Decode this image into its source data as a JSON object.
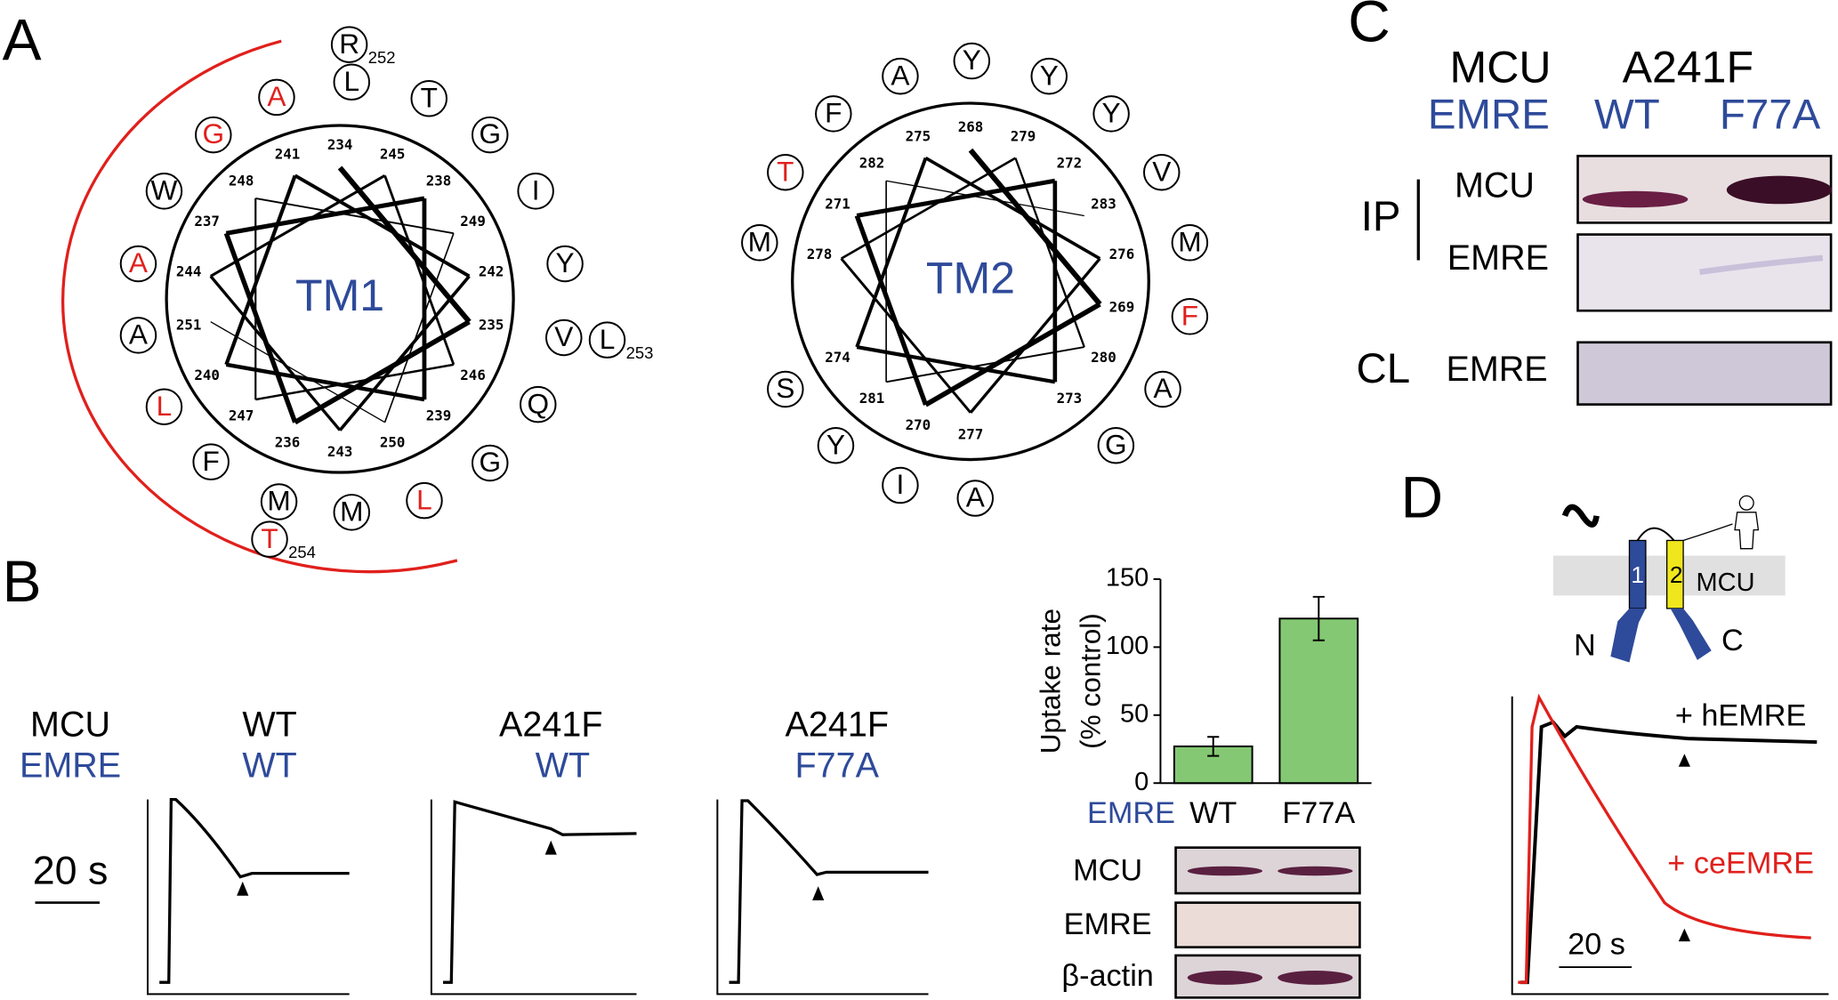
{
  "figure": {
    "panel_labels": [
      "A",
      "B",
      "C",
      "D"
    ],
    "panel_a": {
      "wheels": [
        {
          "name": "TM1",
          "residues": [
            {
              "letter": "R",
              "color": "#000000",
              "number": 252
            },
            {
              "letter": "L",
              "color": "#000000"
            },
            {
              "letter": "T",
              "color": "#000000"
            },
            {
              "letter": "G",
              "color": "#000000"
            },
            {
              "letter": "I",
              "color": "#000000"
            },
            {
              "letter": "Y",
              "color": "#000000"
            },
            {
              "letter": "V",
              "color": "#000000"
            },
            {
              "letter": "L",
              "color": "#000000",
              "number": 253
            },
            {
              "letter": "Q",
              "color": "#000000"
            },
            {
              "letter": "G",
              "color": "#000000"
            },
            {
              "letter": "L",
              "color": "#e0201c"
            },
            {
              "letter": "M",
              "color": "#000000"
            },
            {
              "letter": "M",
              "color": "#000000"
            },
            {
              "letter": "T",
              "color": "#e0201c",
              "number": 254
            },
            {
              "letter": "F",
              "color": "#000000"
            },
            {
              "letter": "L",
              "color": "#e0201c"
            },
            {
              "letter": "A",
              "color": "#000000"
            },
            {
              "letter": "A",
              "color": "#e0201c"
            },
            {
              "letter": "W",
              "color": "#000000"
            },
            {
              "letter": "G",
              "color": "#e0201c"
            },
            {
              "letter": "A",
              "color": "#e0201c"
            }
          ],
          "helix_numbers": [
            234,
            235,
            236,
            237,
            238,
            239,
            240,
            241,
            242,
            243,
            244,
            245,
            246,
            247,
            248,
            249,
            250,
            251
          ]
        },
        {
          "name": "TM2",
          "residues": [
            {
              "letter": "Y",
              "color": "#000000"
            },
            {
              "letter": "Y",
              "color": "#000000"
            },
            {
              "letter": "Y",
              "color": "#000000"
            },
            {
              "letter": "V",
              "color": "#000000"
            },
            {
              "letter": "M",
              "color": "#000000"
            },
            {
              "letter": "F",
              "color": "#e0201c"
            },
            {
              "letter": "A",
              "color": "#000000"
            },
            {
              "letter": "G",
              "color": "#000000"
            },
            {
              "letter": "A",
              "color": "#000000"
            },
            {
              "letter": "I",
              "color": "#000000"
            },
            {
              "letter": "Y",
              "color": "#000000"
            },
            {
              "letter": "S",
              "color": "#000000"
            },
            {
              "letter": "M",
              "color": "#000000"
            },
            {
              "letter": "T",
              "color": "#e0201c"
            },
            {
              "letter": "F",
              "color": "#000000"
            },
            {
              "letter": "A",
              "color": "#000000"
            }
          ],
          "helix_numbers": [
            268,
            269,
            270,
            271,
            272,
            273,
            274,
            275,
            276,
            277,
            278,
            279,
            280,
            281,
            282,
            283
          ]
        }
      ]
    },
    "panel_b": {
      "row_labels": [
        "MCU",
        "EMRE"
      ],
      "conditions": [
        {
          "mcu": "WT",
          "emre": "WT"
        },
        {
          "mcu": "A241F",
          "emre": "WT"
        },
        {
          "mcu": "A241F",
          "emre": "F77A"
        }
      ],
      "scale": "20 s",
      "blot_labels": [
        "MCU",
        "EMRE",
        "β-actin"
      ]
    },
    "panel_c": {
      "row_labels": [
        "MCU",
        "EMRE"
      ],
      "mcu": "A241F",
      "emre": [
        "WT",
        "F77A"
      ],
      "groups": [
        {
          "name": "IP",
          "blots": [
            "MCU",
            "EMRE"
          ]
        },
        {
          "name": "CL",
          "blots": [
            "EMRE"
          ]
        }
      ]
    },
    "panel_d": {
      "helices": [
        "1",
        "2"
      ],
      "protein": "MCU",
      "n_term": "N",
      "c_term": "C",
      "traces": [
        {
          "name": "+ hEMRE",
          "color": "#000000"
        },
        {
          "name": "+ ceEMRE",
          "color": "#e0201c"
        }
      ],
      "scale": "20 s"
    }
  },
  "chart_data": {
    "type": "bar",
    "y_label": [
      "Uptake rate",
      "(% control)"
    ],
    "x_label": "EMRE",
    "categories": [
      "WT",
      "F77A"
    ],
    "values": [
      27,
      121
    ],
    "errors": [
      7,
      16
    ],
    "color": "#84c873",
    "ylim": [
      0,
      150
    ],
    "yticks": [
      0,
      50,
      100,
      150
    ]
  }
}
